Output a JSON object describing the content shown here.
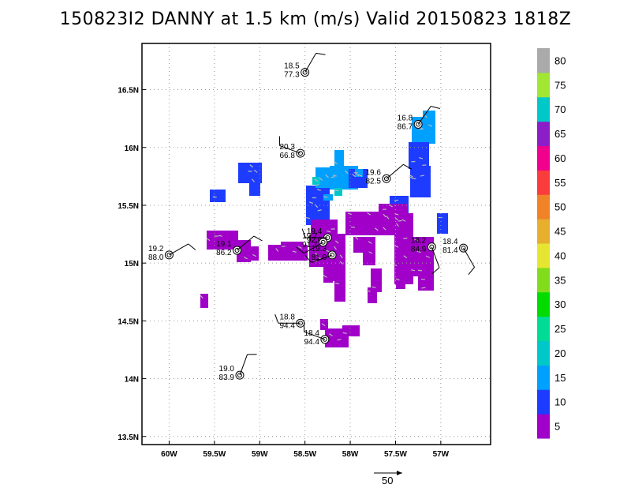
{
  "title": "150823I2 DANNY at 1.5 km (m/s) Valid 20150823 1818Z",
  "chart_data": {
    "type": "heatmap",
    "title": "150823I2 DANNY at 1.5 km (m/s) Valid 20150823 1818Z",
    "xlim": [
      -60.3,
      -56.45
    ],
    "ylim": [
      13.43,
      16.9
    ],
    "x_ticks": [
      {
        "v": -60,
        "label": "60W"
      },
      {
        "v": -59.5,
        "label": "59.5W"
      },
      {
        "v": -59,
        "label": "59W"
      },
      {
        "v": -58.5,
        "label": "58.5W"
      },
      {
        "v": -58,
        "label": "58W"
      },
      {
        "v": -57.5,
        "label": "57.5W"
      },
      {
        "v": -57,
        "label": "57W"
      }
    ],
    "y_ticks": [
      {
        "v": 13.5,
        "label": "13.5N"
      },
      {
        "v": 14,
        "label": "14N"
      },
      {
        "v": 14.5,
        "label": "14.5N"
      },
      {
        "v": 15,
        "label": "15N"
      },
      {
        "v": 15.5,
        "label": "15.5N"
      },
      {
        "v": 16,
        "label": "16N"
      },
      {
        "v": 16.5,
        "label": "16.5N"
      }
    ],
    "grid": true,
    "colorbar": {
      "levels": [
        "5",
        "10",
        "15",
        "20",
        "25",
        "30",
        "35",
        "40",
        "45",
        "50",
        "55",
        "60",
        "65",
        "70",
        "75",
        "80"
      ],
      "colors": [
        "#a000c8",
        "#1e3cff",
        "#00a0ff",
        "#00c8c8",
        "#00dc96",
        "#00dc00",
        "#82dc1e",
        "#e6e632",
        "#e6af2d",
        "#f08228",
        "#fa3c3c",
        "#f0008c",
        "#8c1ec8",
        "#00c8c8",
        "#a0e632",
        "#aaaaaa"
      ]
    },
    "stations": [
      {
        "lon": -58.5,
        "lat": 16.65,
        "t": "18.5",
        "p": "77.3"
      },
      {
        "lon": -57.25,
        "lat": 16.2,
        "t": "16.8",
        "p": "86.7"
      },
      {
        "lon": -58.55,
        "lat": 15.95,
        "t": "20.3",
        "p": "66.8"
      },
      {
        "lon": -57.6,
        "lat": 15.73,
        "t": "19.6",
        "p": "82.5"
      },
      {
        "lon": -58.25,
        "lat": 15.22,
        "t": "19.4",
        "p": "92.0"
      },
      {
        "lon": -58.3,
        "lat": 15.18,
        "t": "19.7",
        "p": "91.7"
      },
      {
        "lon": -58.2,
        "lat": 15.07,
        "t": "19.3",
        "p": "81.0"
      },
      {
        "lon": -60.0,
        "lat": 15.07,
        "t": "19.2",
        "p": "88.0"
      },
      {
        "lon": -59.25,
        "lat": 15.11,
        "t": "19.1",
        "p": "86.2"
      },
      {
        "lon": -57.1,
        "lat": 15.14,
        "t": "18.2",
        "p": "84.9"
      },
      {
        "lon": -56.75,
        "lat": 15.13,
        "t": "18.4",
        "p": "81.4"
      },
      {
        "lon": -58.55,
        "lat": 14.48,
        "t": "18.8",
        "p": "94.4"
      },
      {
        "lon": -58.28,
        "lat": 14.34,
        "t": "18.4",
        "p": "94.4"
      },
      {
        "lon": -59.22,
        "lat": 14.03,
        "t": "19.0",
        "p": "83.9"
      }
    ],
    "vector_reference": "50"
  }
}
